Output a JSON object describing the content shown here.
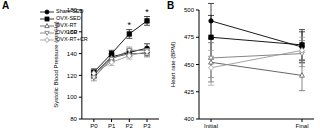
{
  "chart_data": [
    {
      "panel": "A",
      "type": "line",
      "y_label": "Systolic Blood Pressure (mmHg)",
      "categories": [
        "P0",
        "P1",
        "P2",
        "P3"
      ],
      "ylim": [
        80,
        180
      ],
      "yticks": [
        80,
        100,
        120,
        140,
        160,
        180
      ],
      "grid": false,
      "legend": "upper left",
      "series": [
        {
          "name": "Sham-SED",
          "color": "#000000",
          "marker": "circle",
          "values": [
            121,
            137,
            141,
            145
          ],
          "errors": [
            3,
            3,
            3,
            4
          ]
        },
        {
          "name": "OVX-SED",
          "color": "#000000",
          "marker": "square",
          "values": [
            123,
            140,
            158,
            170
          ],
          "errors": [
            3,
            3,
            4,
            4
          ]
        },
        {
          "name": "OVX-RT",
          "color": "#555555",
          "marker": "triangle_open",
          "values": [
            120,
            136,
            140,
            140
          ],
          "errors": [
            3,
            3,
            3,
            3
          ]
        },
        {
          "name": "OVX-CR",
          "color": "#777777",
          "marker": "triangle_down_open",
          "values": [
            118,
            135,
            143,
            143
          ],
          "errors": [
            3,
            3,
            3,
            3
          ]
        },
        {
          "name": "OVX-RT+CR",
          "color": "#999999",
          "marker": "diamond_open",
          "values": [
            122,
            132,
            138,
            142
          ],
          "errors": [
            3,
            3,
            3,
            3
          ]
        }
      ],
      "annotations": [
        {
          "text": "*",
          "x": "P2",
          "y": 166
        },
        {
          "text": "*",
          "x": "P3",
          "y": 178
        }
      ]
    },
    {
      "panel": "B",
      "type": "line",
      "y_label": "Heart rate (BPM)",
      "categories": [
        "Initial",
        "Final"
      ],
      "ylim": [
        400,
        500
      ],
      "yticks": [
        400,
        425,
        450,
        475,
        500
      ],
      "grid": false,
      "series": [
        {
          "name": "Sham-SED",
          "color": "#000000",
          "marker": "circle",
          "values": [
            490,
            466
          ],
          "errors": [
            16,
            14
          ]
        },
        {
          "name": "OVX-SED",
          "color": "#000000",
          "marker": "square",
          "values": [
            475,
            468
          ],
          "errors": [
            20,
            14
          ]
        },
        {
          "name": "OVX-RT",
          "color": "#555555",
          "marker": "triangle_open",
          "values": [
            452,
            440
          ],
          "errors": [
            18,
            14
          ]
        },
        {
          "name": "OVX-CR",
          "color": "#777777",
          "marker": "triangle_down_open",
          "values": [
            456,
            460
          ],
          "errors": [
            18,
            12
          ]
        },
        {
          "name": "OVX-RT+CR",
          "color": "#999999",
          "marker": "diamond_open",
          "values": [
            447,
            463
          ],
          "errors": [
            16,
            12
          ]
        }
      ]
    }
  ]
}
